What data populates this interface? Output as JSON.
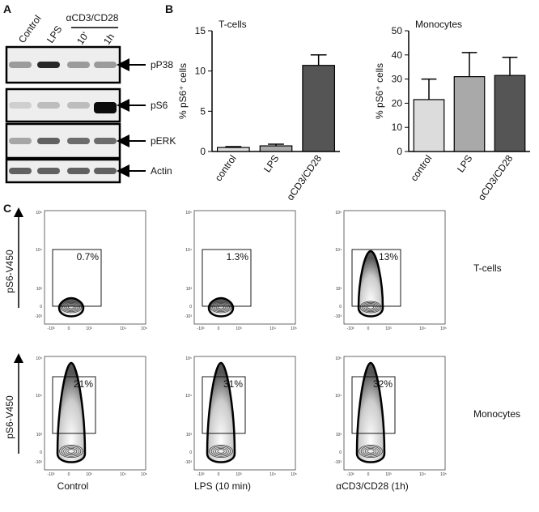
{
  "panel_labels": [
    "A",
    "B",
    "C"
  ],
  "western_blot": {
    "lanes": [
      "Control",
      "LPS",
      "10'",
      "1h"
    ],
    "group_label": "αCD3/CD28",
    "bands": [
      "pP38",
      "pS6",
      "pERK",
      "Actin"
    ]
  },
  "chart_data": [
    {
      "type": "bar",
      "title": "T-cells",
      "y_label": "% pS6⁺ cells",
      "categories": [
        "control",
        "LPS",
        "αCD3/CD28"
      ],
      "values": [
        0.5,
        0.7,
        10.7
      ],
      "errors": [
        0.1,
        0.2,
        1.3
      ],
      "colors": [
        "#dcdcdc",
        "#a9a9a9",
        "#555555"
      ],
      "ylim": [
        0,
        15
      ],
      "yticks": [
        0,
        5,
        10,
        15
      ]
    },
    {
      "type": "bar",
      "title": "Monocytes",
      "y_label": "% pS6⁺ cells",
      "categories": [
        "control",
        "LPS",
        "αCD3/CD28"
      ],
      "values": [
        21.5,
        31,
        31.5
      ],
      "errors": [
        8.5,
        10,
        7.5
      ],
      "colors": [
        "#dcdcdc",
        "#a9a9a9",
        "#555555"
      ],
      "ylim": [
        0,
        50
      ],
      "yticks": [
        0,
        10,
        20,
        30,
        40,
        50
      ]
    }
  ],
  "flow": {
    "y_label": "pS6-V450",
    "x_ticks": [
      "-10³",
      "0",
      "10³",
      "10⁴",
      "10⁵"
    ],
    "y_ticks": [
      "10⁵",
      "10⁴",
      "10³",
      "0",
      "-10³"
    ],
    "rows": [
      "T-cells",
      "Monocytes"
    ],
    "columns": [
      "Control",
      "LPS (10 min)",
      "αCD3/CD28 (1h)"
    ],
    "gates": [
      [
        "0.7%",
        "1.3%",
        "13%"
      ],
      [
        "21%",
        "31%",
        "32%"
      ]
    ]
  }
}
